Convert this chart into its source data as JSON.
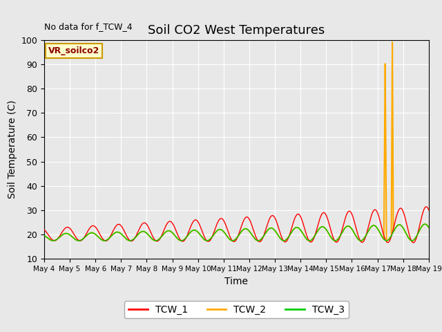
{
  "title": "Soil CO2 West Temperatures",
  "no_data_text": "No data for f_TCW_4",
  "xlabel": "Time",
  "ylabel": "Soil Temperature (C)",
  "ylim": [
    10,
    100
  ],
  "background_color": "#e8e8e8",
  "legend_box_label": "VR_soilco2",
  "legend_entries": [
    "TCW_1",
    "TCW_2",
    "TCW_3"
  ],
  "line_colors": [
    "#ff0000",
    "#ffaa00",
    "#00cc00"
  ],
  "x_tick_labels": [
    "May 4",
    "May 5",
    "May 6",
    "May 7",
    "May 8",
    "May 9",
    "May 10",
    "May 11",
    "May 12",
    "May 13",
    "May 14",
    "May 15",
    "May 16",
    "May 17",
    "May 18",
    "May 19"
  ],
  "grid_color": "#ffffff",
  "fig_bg": "#e8e8e8"
}
